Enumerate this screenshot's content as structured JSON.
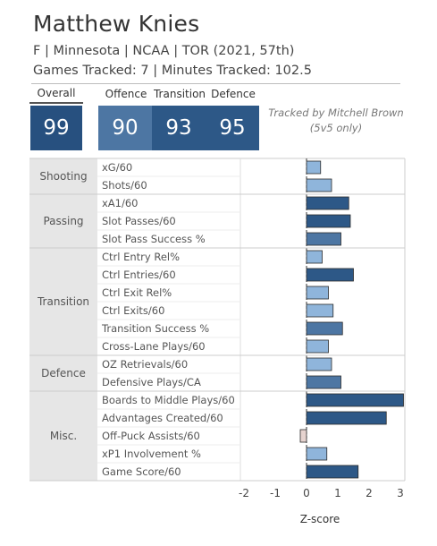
{
  "header": {
    "player_name": "Matthew Knies",
    "subtitle": "F | Minnesota | NCAA | TOR (2021, 57th)",
    "tracked": "Games Tracked: 7 | Minutes Tracked: 102.5"
  },
  "scores": {
    "overall_label": "Overall",
    "overall_value": "99",
    "offence_label": "Offence",
    "offence_value": "90",
    "transition_label": "Transition",
    "transition_value": "93",
    "defence_label": "Defence",
    "defence_value": "95",
    "note_line1": "Tracked by Mitchell Brown",
    "note_line2": "(5v5 only)"
  },
  "colors": {
    "dark_blue": "#2d5887",
    "mid_blue": "#4d76a3",
    "light_blue": "#8fb5db",
    "negative": "#e6d3cf",
    "group_bg": "#e6e6e6"
  },
  "chart_data": {
    "type": "bar",
    "orientation": "horizontal",
    "xlabel": "Z-score",
    "xlim": [
      -2.5,
      3.1
    ],
    "xticks": [
      "-2",
      "-1",
      "0",
      "1",
      "2",
      "3"
    ],
    "groups": [
      {
        "name": "Shooting",
        "metrics": [
          {
            "label": "xG/60",
            "value": 0.45
          },
          {
            "label": "Shots/60",
            "value": 0.8
          }
        ]
      },
      {
        "name": "Passing",
        "metrics": [
          {
            "label": "xA1/60",
            "value": 1.35
          },
          {
            "label": "Slot Passes/60",
            "value": 1.4
          },
          {
            "label": "Slot Pass Success %",
            "value": 1.1
          }
        ]
      },
      {
        "name": "Transition",
        "metrics": [
          {
            "label": "Ctrl Entry Rel%",
            "value": 0.5
          },
          {
            "label": "Ctrl Entries/60",
            "value": 1.5
          },
          {
            "label": "Ctrl Exit Rel%",
            "value": 0.7
          },
          {
            "label": "Ctrl Exits/60",
            "value": 0.85
          },
          {
            "label": "Transition Success %",
            "value": 1.15
          },
          {
            "label": "Cross-Lane Plays/60",
            "value": 0.7
          }
        ]
      },
      {
        "name": "Defence",
        "metrics": [
          {
            "label": "OZ Retrievals/60",
            "value": 0.8
          },
          {
            "label": "Defensive Plays/CA",
            "value": 1.1
          }
        ]
      },
      {
        "name": "Misc.",
        "metrics": [
          {
            "label": "Boards to Middle Plays/60",
            "value": 3.1
          },
          {
            "label": "Advantages Created/60",
            "value": 2.55
          },
          {
            "label": "Off-Puck Assists/60",
            "value": -0.2
          },
          {
            "label": "xP1 Involvement %",
            "value": 0.65
          },
          {
            "label": "Game Score/60",
            "value": 1.65
          }
        ]
      }
    ]
  }
}
